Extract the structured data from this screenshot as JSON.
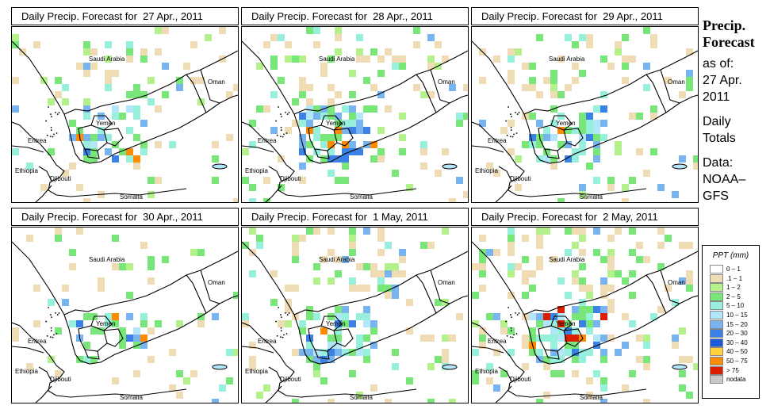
{
  "panels": [
    {
      "title": "Daily Precip. Forecast for  27 Apr., 2011",
      "seed": 11,
      "density": 0.55
    },
    {
      "title": "Daily Precip. Forecast for  28 Apr., 2011",
      "seed": 23,
      "density": 0.75
    },
    {
      "title": "Daily Precip. Forecast for  29 Apr., 2011",
      "seed": 37,
      "density": 0.6
    },
    {
      "title": "Daily Precip. Forecast for  30 Apr., 2011",
      "seed": 41,
      "density": 0.45
    },
    {
      "title": "Daily Precip. Forecast for  1 May, 2011",
      "seed": 53,
      "density": 0.7
    },
    {
      "title": "Daily Precip. Forecast for  2 May, 2011",
      "seed": 67,
      "density": 0.9
    }
  ],
  "map_labels": {
    "saudi": "Saudi Arabia",
    "oman": "Oman",
    "yemen": "Yemen",
    "eritrea": "Eritrea",
    "ethiopia": "Ethiopia",
    "djibouti": "Djibouti",
    "somalia": "Somalia"
  },
  "side": {
    "line1": "Precip.",
    "line2": "Forecast",
    "asof": "as of:",
    "date1": "27 Apr.",
    "date2": "2011",
    "daily1": "Daily",
    "daily2": "Totals",
    "data1": "Data:",
    "data2": "NOAA–",
    "data3": "GFS"
  },
  "legend": {
    "title": "PPT (mm)",
    "items": [
      {
        "label": "0 – 1",
        "color": "#ffffff"
      },
      {
        "label": ".1 – 1",
        "color": "#f0dcb4"
      },
      {
        "label": "1 – 2",
        "color": "#b4f08c"
      },
      {
        "label": "2 – 5",
        "color": "#78e678"
      },
      {
        "label": "5 – 10",
        "color": "#96f0dc"
      },
      {
        "label": "10 – 15",
        "color": "#b4e6fa"
      },
      {
        "label": "15 – 20",
        "color": "#78b4f0"
      },
      {
        "label": "20 – 30",
        "color": "#3c82e6"
      },
      {
        "label": "30 – 40",
        "color": "#1e5adc"
      },
      {
        "label": "40 – 50",
        "color": "#ffd23c"
      },
      {
        "label": "50 – 75",
        "color": "#ff8c00"
      },
      {
        "label": "> 75",
        "color": "#dc1e00"
      },
      {
        "label": "nodata",
        "color": "#c8c8c8"
      }
    ]
  }
}
